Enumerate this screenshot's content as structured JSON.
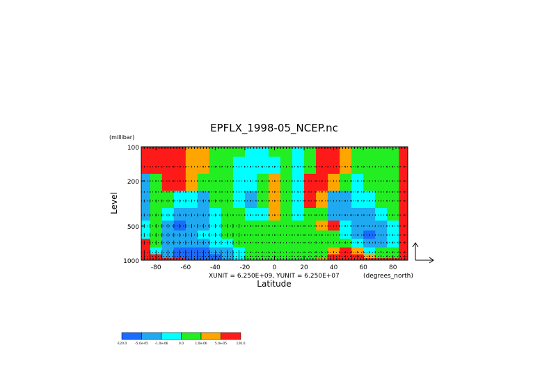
{
  "chart_data": {
    "type": "heatmap",
    "title": "EPFLX_1998-05_NCEP.nc",
    "xlabel": "Latitude",
    "ylabel": "Level",
    "y_units": "(millibar)",
    "x_units": "(degrees_north)",
    "unit_note": "XUNIT = 6.250E+09, YUNIT = 6.250E+07",
    "xlim": [
      -90,
      90
    ],
    "ylim": [
      100,
      1000
    ],
    "y_scale": "log",
    "x_ticks": [
      "-80",
      "-60",
      "-40",
      "-20",
      "0",
      "20",
      "40",
      "60",
      "80"
    ],
    "x_tick_values": [
      -80,
      -60,
      -40,
      -20,
      0,
      20,
      40,
      60,
      80
    ],
    "y_ticks": [
      "100",
      "200",
      "500",
      "1000"
    ],
    "y_tick_values": [
      100,
      200,
      500,
      1000
    ],
    "latitudes": [
      -88,
      -80,
      -72,
      -64,
      -56,
      -48,
      -40,
      -32,
      -24,
      -16,
      -8,
      0,
      8,
      16,
      24,
      32,
      40,
      48,
      56,
      64,
      72,
      80,
      88
    ],
    "levels": [
      100,
      150,
      200,
      300,
      400,
      500,
      600,
      700,
      850,
      925,
      1000
    ],
    "levels_shown_dotted": [
      150,
      200,
      250,
      300,
      400,
      500,
      600,
      700,
      850,
      925
    ],
    "values": [
      [
        120,
        5e-05,
        5e-05,
        5e-05,
        1e-06,
        1e-06,
        0,
        0,
        0,
        -1e-06,
        -1e-06,
        0,
        0,
        -1e-06,
        0,
        5e-05,
        5e-05,
        1e-06,
        0,
        0,
        0,
        0,
        120
      ],
      [
        120,
        5e-05,
        5e-05,
        5e-05,
        1e-06,
        1e-06,
        0,
        0,
        -1e-06,
        -1e-06,
        -1e-06,
        -1e-06,
        0,
        -1e-06,
        0,
        5e-05,
        5e-05,
        1e-06,
        0,
        0,
        0,
        0,
        120
      ],
      [
        -5e-05,
        0,
        5e-05,
        5e-05,
        1e-06,
        0,
        0,
        0,
        -1e-06,
        -1e-06,
        0,
        1e-06,
        0,
        -1e-06,
        5e-05,
        5e-05,
        1e-06,
        0,
        -1e-06,
        0,
        0,
        0,
        120
      ],
      [
        -5e-05,
        0,
        0,
        -1e-06,
        -1e-06,
        -5e-05,
        0,
        0,
        -1e-06,
        -5e-05,
        0,
        1e-06,
        0,
        -1e-06,
        5e-05,
        1e-06,
        -5e-05,
        -5e-05,
        -1e-06,
        -1e-06,
        0,
        0,
        120
      ],
      [
        -5e-05,
        0,
        -1e-06,
        -5e-05,
        -5e-05,
        -5e-05,
        -1e-06,
        0,
        0,
        -1e-06,
        -1e-06,
        1e-06,
        0,
        -1e-06,
        0,
        0,
        -5e-05,
        -5e-05,
        -5e-05,
        -5e-05,
        -1e-06,
        0,
        120
      ],
      [
        -1e-06,
        0,
        -5e-05,
        -120,
        -5e-05,
        -5e-05,
        -1e-06,
        0,
        0,
        0,
        0,
        0,
        0,
        0,
        0,
        1e-06,
        5e-05,
        -1e-06,
        -5e-05,
        -5e-05,
        -5e-05,
        -1e-06,
        120
      ],
      [
        -1e-06,
        0,
        -5e-05,
        -5e-05,
        -5e-05,
        -1e-06,
        -1e-06,
        0,
        0,
        0,
        0,
        0,
        0,
        0,
        0,
        0,
        0,
        -1e-06,
        -5e-05,
        -120,
        -5e-05,
        -1e-06,
        120
      ],
      [
        5e-05,
        0,
        -5e-05,
        -5e-05,
        -5e-05,
        -5e-05,
        -1e-06,
        -1e-06,
        0,
        0,
        0,
        0,
        0,
        0,
        0,
        0,
        0,
        0,
        -1e-06,
        -5e-05,
        -5e-05,
        -1e-06,
        120
      ],
      [
        120,
        -1e-06,
        -5e-05,
        -120,
        -120,
        -120,
        -5e-05,
        -5e-05,
        -1e-06,
        0,
        0,
        0,
        0,
        0,
        0,
        0,
        1e-06,
        5e-05,
        1e-06,
        -1e-06,
        0,
        0,
        120
      ],
      [
        120,
        5e-05,
        -5e-05,
        -120,
        -120,
        -120,
        -120,
        -5e-05,
        -1e-06,
        0,
        0,
        0,
        0,
        0,
        0,
        0,
        5e-05,
        120,
        5e-05,
        1e-06,
        0,
        0,
        120
      ],
      [
        120,
        120,
        5e-05,
        120,
        -120,
        -120,
        -120,
        -5e-05,
        -1e-06,
        0,
        0,
        0,
        0,
        0,
        0,
        1e-06,
        120,
        120,
        120,
        120,
        120,
        5e-05,
        120
      ]
    ],
    "colorbar": {
      "colors": [
        "#1a6bff",
        "#1fa9f0",
        "#00ffff",
        "#22ee22",
        "#ffa500",
        "#ff1a1a"
      ],
      "labels": [
        "-120.0",
        "-5.0e-05",
        "-1.0e-06",
        "0.0",
        "1.0e-06",
        "5.0e-05",
        "120.0"
      ]
    },
    "quiver": true,
    "grid": true,
    "legend": "bottom-left colorbar"
  }
}
